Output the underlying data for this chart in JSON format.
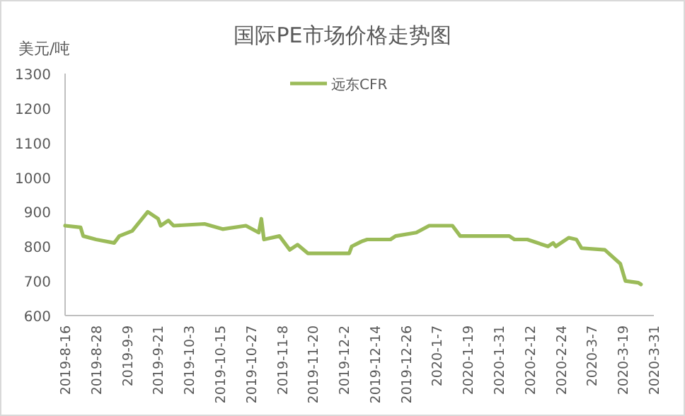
{
  "chart_data": {
    "type": "line",
    "title": "国际PE市场价格走势图",
    "ylabel": "美元/吨",
    "legend": "top",
    "x": [
      "2019-08-16",
      "2019-08-22",
      "2019-08-23",
      "2019-08-28",
      "2019-09-04",
      "2019-09-06",
      "2019-09-11",
      "2019-09-17",
      "2019-09-21",
      "2019-09-22",
      "2019-09-25",
      "2019-09-27",
      "2019-10-09",
      "2019-10-16",
      "2019-10-25",
      "2019-10-30",
      "2019-10-31",
      "2019-11-01",
      "2019-11-07",
      "2019-11-09",
      "2019-11-11",
      "2019-11-14",
      "2019-11-18",
      "2019-12-04",
      "2019-12-05",
      "2019-12-09",
      "2019-12-11",
      "2019-12-20",
      "2019-12-22",
      "2019-12-30",
      "2020-01-04",
      "2020-01-13",
      "2020-01-16",
      "2020-02-04",
      "2020-02-06",
      "2020-02-11",
      "2020-02-19",
      "2020-02-21",
      "2020-02-22",
      "2020-02-27",
      "2020-03-01",
      "2020-03-03",
      "2020-03-12",
      "2020-03-18",
      "2020-03-20",
      "2020-03-25",
      "2020-03-26"
    ],
    "series": [
      {
        "name": "远东CFR",
        "color": "#9bbb59",
        "values": [
          860,
          855,
          830,
          820,
          810,
          830,
          845,
          900,
          880,
          860,
          875,
          860,
          865,
          850,
          860,
          840,
          880,
          820,
          830,
          810,
          790,
          805,
          780,
          780,
          800,
          815,
          820,
          820,
          830,
          840,
          860,
          860,
          830,
          830,
          820,
          820,
          800,
          810,
          800,
          825,
          820,
          795,
          790,
          750,
          700,
          695,
          690
        ]
      }
    ],
    "xlim": [
      "2019-08-16",
      "2020-03-31"
    ],
    "xticks": [
      {
        "value": "2019-08-16",
        "label": "2019-8-16"
      },
      {
        "value": "2019-08-28",
        "label": "2019-8-28"
      },
      {
        "value": "2019-09-09",
        "label": "2019-9-9"
      },
      {
        "value": "2019-09-21",
        "label": "2019-9-21"
      },
      {
        "value": "2019-10-03",
        "label": "2019-10-3"
      },
      {
        "value": "2019-10-15",
        "label": "2019-10-15"
      },
      {
        "value": "2019-10-27",
        "label": "2019-10-27"
      },
      {
        "value": "2019-11-08",
        "label": "2019-11-8"
      },
      {
        "value": "2019-11-20",
        "label": "2019-11-20"
      },
      {
        "value": "2019-12-02",
        "label": "2019-12-2"
      },
      {
        "value": "2019-12-14",
        "label": "2019-12-14"
      },
      {
        "value": "2019-12-26",
        "label": "2019-12-26"
      },
      {
        "value": "2020-01-07",
        "label": "2020-1-7"
      },
      {
        "value": "2020-01-19",
        "label": "2020-1-19"
      },
      {
        "value": "2020-01-31",
        "label": "2020-1-31"
      },
      {
        "value": "2020-02-12",
        "label": "2020-2-12"
      },
      {
        "value": "2020-02-24",
        "label": "2020-2-24"
      },
      {
        "value": "2020-03-07",
        "label": "2020-3-7"
      },
      {
        "value": "2020-03-19",
        "label": "2020-3-19"
      },
      {
        "value": "2020-03-31",
        "label": "2020-3-31"
      }
    ],
    "ylim": [
      600,
      1300
    ],
    "yticks": [
      600,
      700,
      800,
      900,
      1000,
      1100,
      1200,
      1300
    ]
  }
}
